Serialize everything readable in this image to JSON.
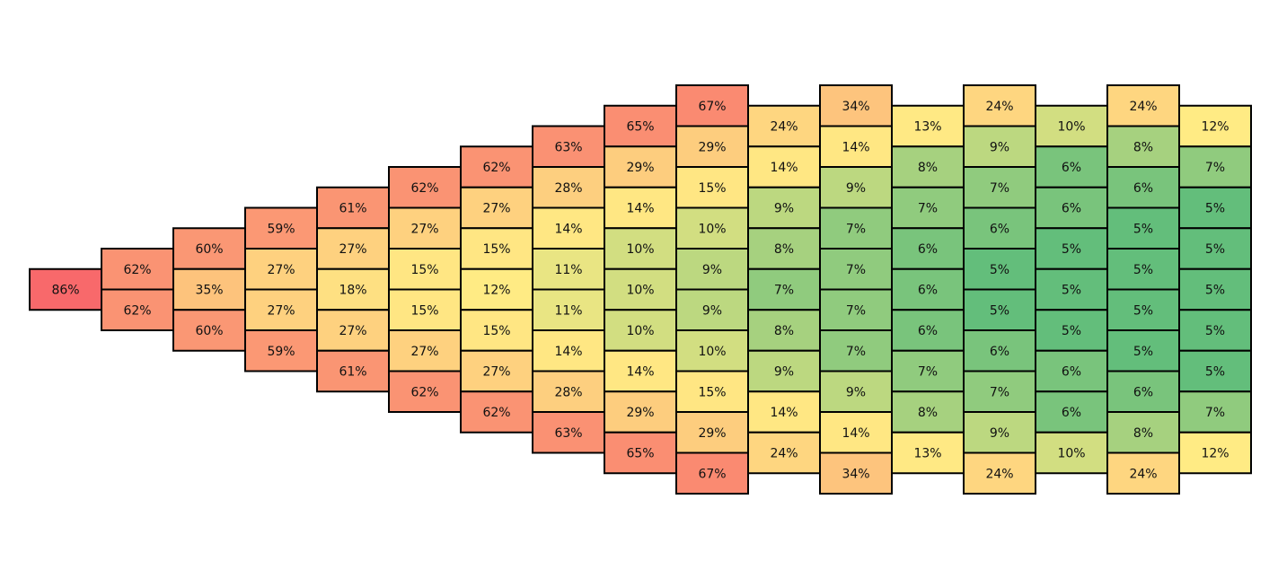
{
  "chart_data": {
    "type": "pyramid-heatmap",
    "colors": [
      "#63be7b",
      "#ffeb84",
      "#f8696b"
    ],
    "columns": [
      {
        "values": [
          86
        ],
        "value_labels": [
          "86%"
        ]
      },
      {
        "values": [
          62,
          62
        ],
        "value_labels": [
          "62%",
          "62%"
        ]
      },
      {
        "values": [
          60,
          35,
          60
        ],
        "value_labels": [
          "60%",
          "35%",
          "60%"
        ]
      },
      {
        "values": [
          59,
          27,
          27,
          59
        ],
        "value_labels": [
          "59%",
          "27%",
          "27%",
          "59%"
        ]
      },
      {
        "values": [
          61,
          27,
          18,
          27,
          61
        ],
        "value_labels": [
          "61%",
          "27%",
          "18%",
          "27%",
          "61%"
        ]
      },
      {
        "values": [
          62,
          27,
          15,
          15,
          27,
          62
        ],
        "value_labels": [
          "62%",
          "27%",
          "15%",
          "15%",
          "27%",
          "62%"
        ]
      },
      {
        "values": [
          62,
          27,
          15,
          12,
          15,
          27,
          62
        ],
        "value_labels": [
          "62%",
          "27%",
          "15%",
          "12%",
          "15%",
          "27%",
          "62%"
        ]
      },
      {
        "values": [
          63,
          28,
          14,
          11,
          11,
          14,
          28,
          63
        ],
        "value_labels": [
          "63%",
          "28%",
          "14%",
          "11%",
          "11%",
          "14%",
          "28%",
          "63%"
        ]
      },
      {
        "values": [
          65,
          29,
          14,
          10,
          10,
          10,
          14,
          29,
          65
        ],
        "value_labels": [
          "65%",
          "29%",
          "14%",
          "10%",
          "10%",
          "10%",
          "14%",
          "29%",
          "65%"
        ]
      },
      {
        "values": [
          67,
          29,
          15,
          10,
          9,
          9,
          10,
          15,
          29,
          67
        ],
        "value_labels": [
          "67%",
          "29%",
          "15%",
          "10%",
          "9%",
          "9%",
          "10%",
          "15%",
          "29%",
          "67%"
        ]
      },
      {
        "values": [
          24,
          14,
          9,
          8,
          7,
          8,
          9,
          14,
          24
        ],
        "value_labels": [
          "24%",
          "14%",
          "9%",
          "8%",
          "7%",
          "8%",
          "9%",
          "14%",
          "24%"
        ]
      },
      {
        "values": [
          34,
          14,
          9,
          7,
          7,
          7,
          7,
          9,
          14,
          34
        ],
        "value_labels": [
          "34%",
          "14%",
          "9%",
          "7%",
          "7%",
          "7%",
          "7%",
          "9%",
          "14%",
          "34%"
        ]
      },
      {
        "values": [
          13,
          8,
          7,
          6,
          6,
          6,
          7,
          8,
          13
        ],
        "value_labels": [
          "13%",
          "8%",
          "7%",
          "6%",
          "6%",
          "6%",
          "7%",
          "8%",
          "13%"
        ]
      },
      {
        "values": [
          24,
          9,
          7,
          6,
          5,
          5,
          6,
          7,
          9,
          24
        ],
        "value_labels": [
          "24%",
          "9%",
          "7%",
          "6%",
          "5%",
          "5%",
          "6%",
          "7%",
          "9%",
          "24%"
        ]
      },
      {
        "values": [
          10,
          6,
          6,
          5,
          5,
          5,
          6,
          6,
          10
        ],
        "value_labels": [
          "10%",
          "6%",
          "6%",
          "5%",
          "5%",
          "5%",
          "6%",
          "6%",
          "10%"
        ]
      },
      {
        "values": [
          24,
          8,
          6,
          5,
          5,
          5,
          5,
          6,
          8,
          24
        ],
        "value_labels": [
          "24%",
          "8%",
          "6%",
          "5%",
          "5%",
          "5%",
          "5%",
          "6%",
          "8%",
          "24%"
        ]
      },
      {
        "values": [
          12,
          7,
          5,
          5,
          5,
          5,
          5,
          7,
          12
        ],
        "value_labels": [
          "12%",
          "7%",
          "5%",
          "5%",
          "5%",
          "5%",
          "5%",
          "7%",
          "12%"
        ]
      }
    ]
  }
}
